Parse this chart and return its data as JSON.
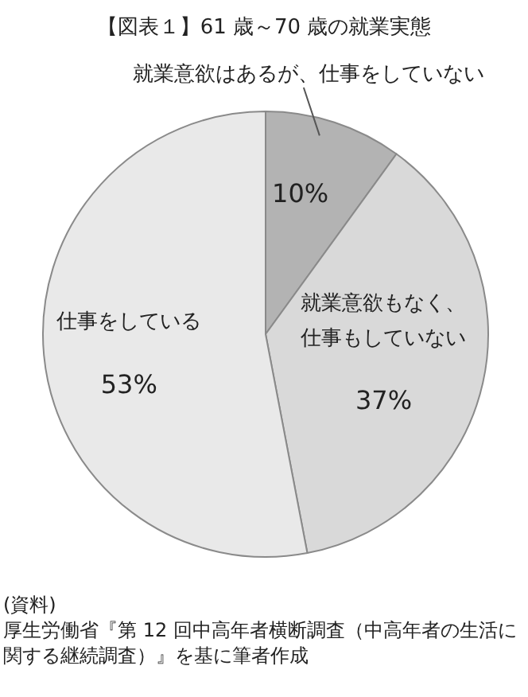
{
  "chart_data": {
    "type": "pie",
    "title": "【図表１】61 歳～70 歳の就業実態",
    "categories": [
      "就業意欲はあるが、仕事をしていない",
      "就業意欲もなく、仕事もしていない",
      "仕事をしている"
    ],
    "values": [
      10,
      37,
      53
    ],
    "value_labels": [
      "10%",
      "37%",
      "53%"
    ],
    "colors": [
      "#b3b3b3",
      "#d9d9d9",
      "#e9e9e9"
    ],
    "annotations": [
      "(資料)",
      "厚生労働省『第 12 回中高年者横断調査（中高年者の生活に関する継続調査）』を基に筆者作成"
    ]
  }
}
